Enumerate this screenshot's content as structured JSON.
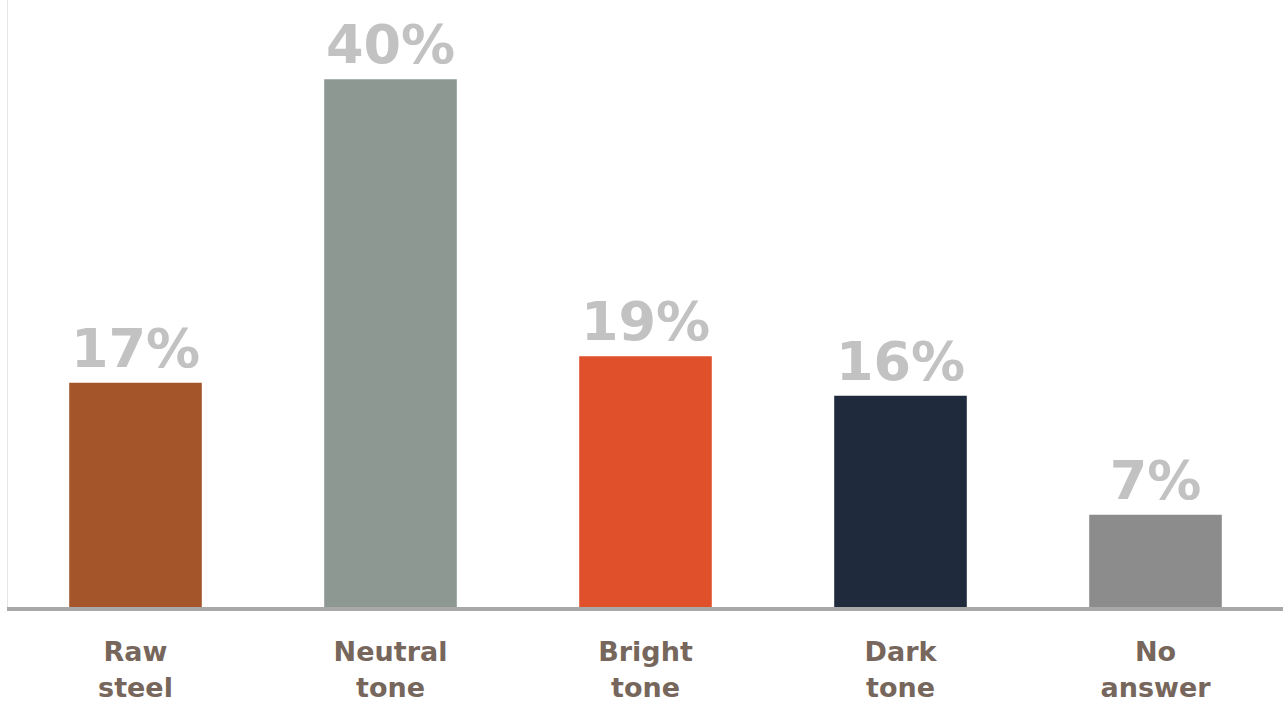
{
  "chart_data": {
    "type": "bar",
    "categories": [
      "Raw steel",
      "Neutral tone",
      "Bright tone",
      "Dark tone",
      "No answer"
    ],
    "values": [
      17,
      40,
      19,
      16,
      7
    ],
    "value_labels": [
      "17%",
      "40%",
      "19%",
      "16%",
      "7%"
    ],
    "colors": [
      "#a4552a",
      "#8d9893",
      "#e0512b",
      "#1f2b3d",
      "#8c8c8c"
    ],
    "ylim": [
      0,
      46
    ],
    "data_labels": true,
    "tick_labels": "x",
    "grid": false
  }
}
